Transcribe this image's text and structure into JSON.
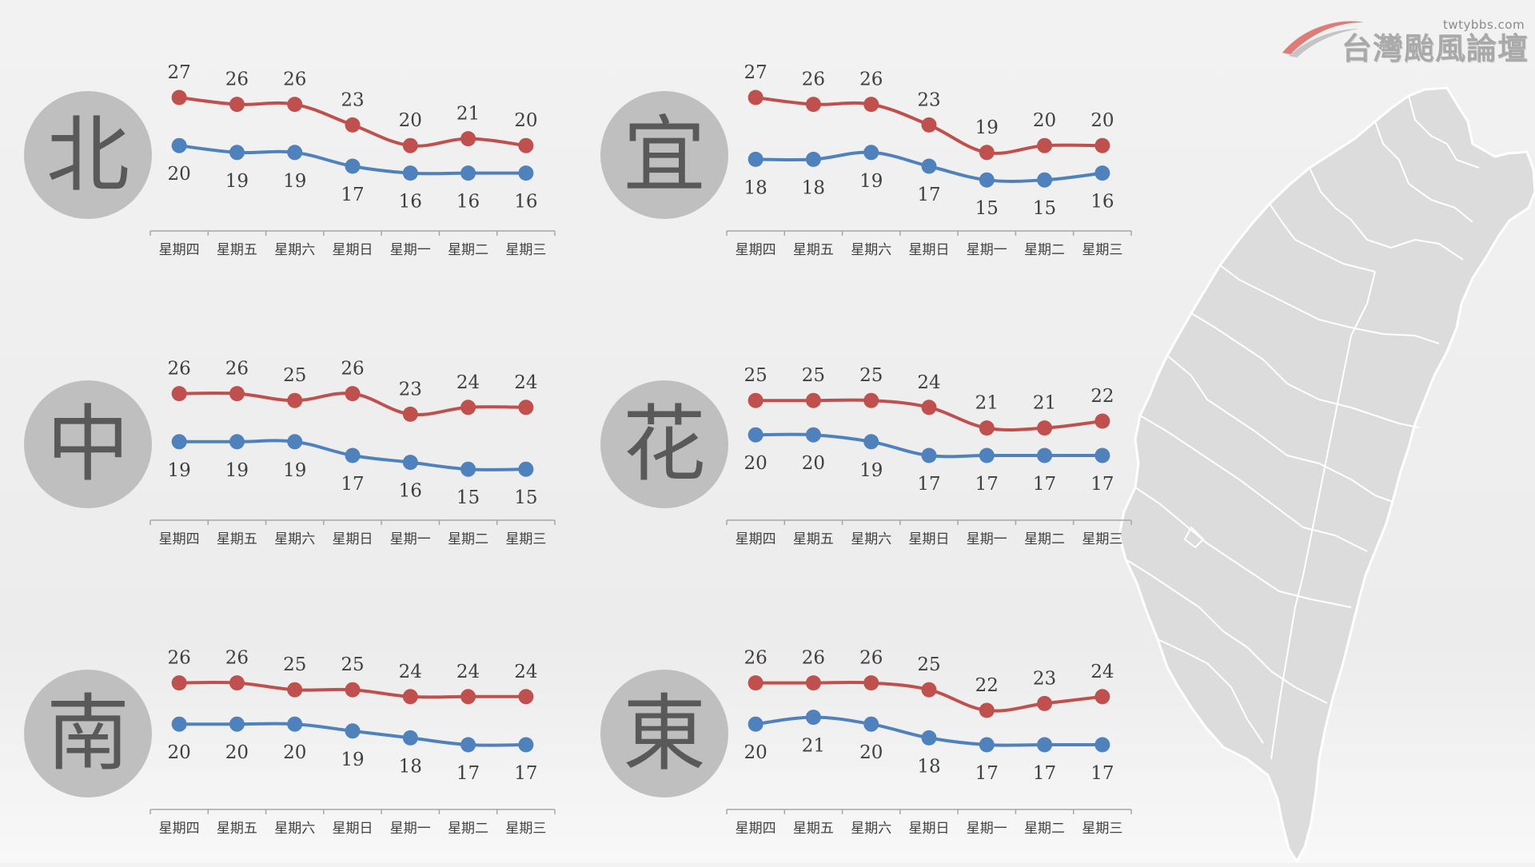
{
  "logo": {
    "site": "twtybbs.com",
    "title": "台灣颱風論壇"
  },
  "map": {
    "icon": "taiwan-map-icon",
    "fill": "#dcdcdc",
    "stroke": "#ffffff"
  },
  "colors": {
    "high": "#c0504d",
    "low": "#4f81bd",
    "badge": "#bfbfbf",
    "badge_text": "#595959",
    "axis": "#a6a6a6",
    "label": "#404040"
  },
  "chart_data": [
    {
      "type": "line",
      "region": "北",
      "categories": [
        "星期四",
        "星期五",
        "星期六",
        "星期日",
        "星期一",
        "星期二",
        "星期三"
      ],
      "series": [
        {
          "values": [
            27,
            26,
            26,
            23,
            20,
            21,
            20
          ]
        },
        {
          "values": [
            20,
            19,
            19,
            17,
            16,
            16,
            16
          ]
        }
      ],
      "legend": "none",
      "grid": false
    },
    {
      "type": "line",
      "region": "宜",
      "categories": [
        "星期四",
        "星期五",
        "星期六",
        "星期日",
        "星期一",
        "星期二",
        "星期三"
      ],
      "series": [
        {
          "values": [
            27,
            26,
            26,
            23,
            19,
            20,
            20
          ]
        },
        {
          "values": [
            18,
            18,
            19,
            17,
            15,
            15,
            16
          ]
        }
      ],
      "legend": "none",
      "grid": false
    },
    {
      "type": "line",
      "region": "中",
      "categories": [
        "星期四",
        "星期五",
        "星期六",
        "星期日",
        "星期一",
        "星期二",
        "星期三"
      ],
      "series": [
        {
          "values": [
            26,
            26,
            25,
            26,
            23,
            24,
            24
          ]
        },
        {
          "values": [
            19,
            19,
            19,
            17,
            16,
            15,
            15
          ]
        }
      ],
      "legend": "none",
      "grid": false
    },
    {
      "type": "line",
      "region": "花",
      "categories": [
        "星期四",
        "星期五",
        "星期六",
        "星期日",
        "星期一",
        "星期二",
        "星期三"
      ],
      "series": [
        {
          "values": [
            25,
            25,
            25,
            24,
            21,
            21,
            22
          ]
        },
        {
          "values": [
            20,
            20,
            19,
            17,
            17,
            17,
            17
          ]
        }
      ],
      "legend": "none",
      "grid": false
    },
    {
      "type": "line",
      "region": "南",
      "categories": [
        "星期四",
        "星期五",
        "星期六",
        "星期日",
        "星期一",
        "星期二",
        "星期三"
      ],
      "series": [
        {
          "values": [
            26,
            26,
            25,
            25,
            24,
            24,
            24
          ]
        },
        {
          "values": [
            20,
            20,
            20,
            19,
            18,
            17,
            17
          ]
        }
      ],
      "legend": "none",
      "grid": false
    },
    {
      "type": "line",
      "region": "東",
      "categories": [
        "星期四",
        "星期五",
        "星期六",
        "星期日",
        "星期一",
        "星期二",
        "星期三"
      ],
      "series": [
        {
          "values": [
            26,
            26,
            26,
            25,
            22,
            23,
            24
          ]
        },
        {
          "values": [
            20,
            21,
            20,
            18,
            17,
            17,
            17
          ]
        }
      ],
      "legend": "none",
      "grid": false
    }
  ]
}
